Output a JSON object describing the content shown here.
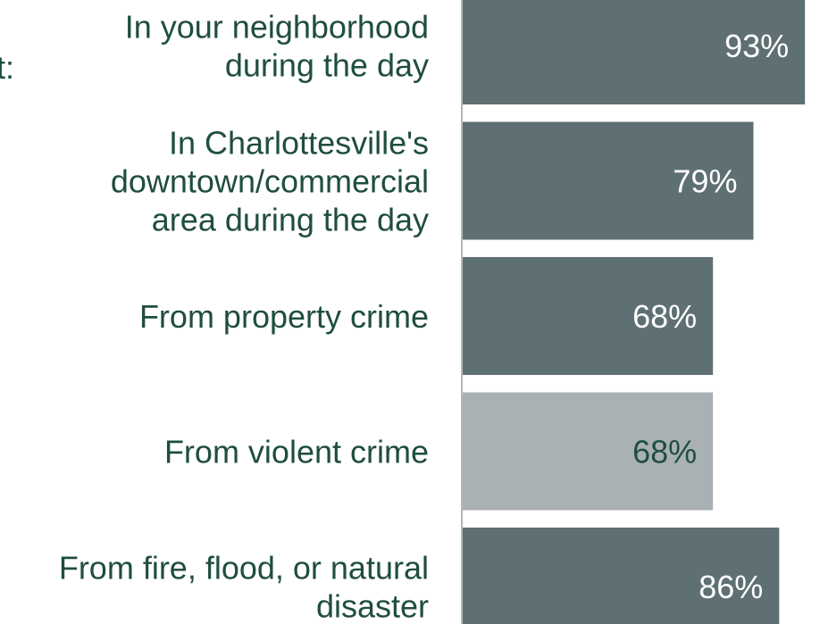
{
  "chart_data": {
    "type": "bar",
    "orientation": "horizontal",
    "prefix_fragment": "t:",
    "categories": [
      [
        "In your neighborhood",
        "during the day"
      ],
      [
        "In Charlottesville's",
        "downtown/commercial",
        "area during the day"
      ],
      [
        "From property crime"
      ],
      [
        "From violent crime"
      ],
      [
        "From fire, flood, or natural",
        "disaster"
      ]
    ],
    "values": [
      93,
      79,
      68,
      68,
      86
    ],
    "value_labels": [
      "93%",
      "79%",
      "68%",
      "68%",
      "86%"
    ],
    "bar_colors": [
      "#5f7074",
      "#5f7074",
      "#5f7074",
      "#a9b1b5",
      "#5f7074"
    ],
    "value_label_colors": [
      "#ffffff",
      "#ffffff",
      "#ffffff",
      "#1f4e3d",
      "#ffffff"
    ],
    "label_color": "#1f4e3d",
    "axis_color": "#b0b8bb",
    "xlim": [
      0,
      100
    ],
    "title": "",
    "xlabel": "",
    "ylabel": ""
  }
}
